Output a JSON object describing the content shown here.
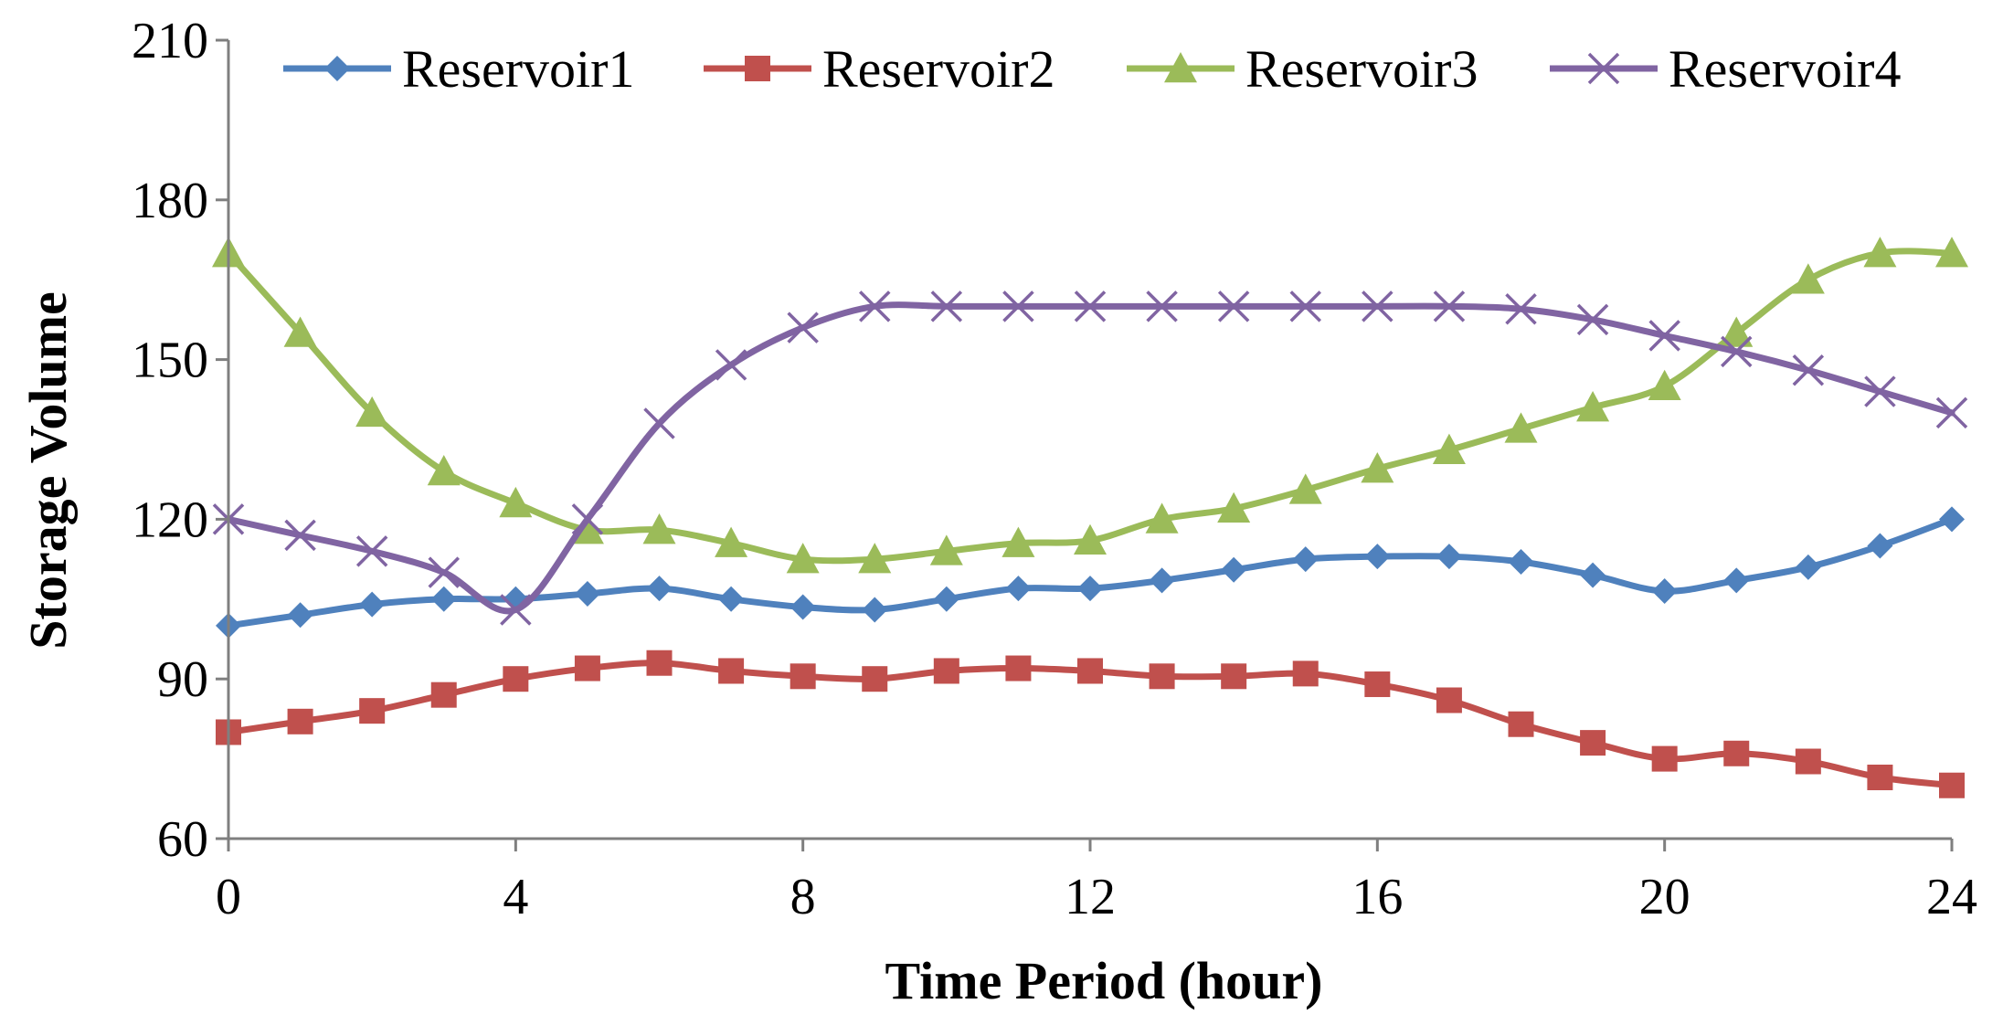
{
  "chart_data": {
    "type": "line",
    "title": "",
    "xlabel": "Time Period (hour)",
    "ylabel": "Storage Volume",
    "x": [
      0,
      1,
      2,
      3,
      4,
      5,
      6,
      7,
      8,
      9,
      10,
      11,
      12,
      13,
      14,
      15,
      16,
      17,
      18,
      19,
      20,
      21,
      22,
      23,
      24
    ],
    "xlim": [
      0,
      24
    ],
    "ylim": [
      60,
      210
    ],
    "xticks": [
      0,
      4,
      8,
      12,
      16,
      20,
      24
    ],
    "yticks": [
      60,
      90,
      120,
      150,
      180,
      210
    ],
    "xtick_labels": [
      "0",
      "4",
      "8",
      "12",
      "16",
      "20",
      "24"
    ],
    "ytick_labels": [
      "60",
      "90",
      "120",
      "150",
      "180",
      "210"
    ],
    "grid": false,
    "legend_position": "top",
    "smooth": true,
    "series": [
      {
        "name": "Reservoir1",
        "color": "#4F81BD",
        "marker": "diamond",
        "values": [
          100,
          102,
          104,
          105,
          105,
          106,
          107,
          105,
          103.5,
          103,
          105,
          107,
          107,
          108.5,
          110.5,
          112.5,
          113,
          113,
          112,
          109.5,
          106.5,
          108.5,
          111,
          115,
          120
        ]
      },
      {
        "name": "Reservoir2",
        "color": "#C0504D",
        "marker": "square",
        "values": [
          80,
          82,
          84,
          87,
          90,
          92,
          93,
          91.5,
          90.5,
          90,
          91.5,
          92,
          91.5,
          90.5,
          90.5,
          91,
          89,
          86,
          81.5,
          78,
          75,
          76,
          74.5,
          71.5,
          70
        ]
      },
      {
        "name": "Reservoir3",
        "color": "#9BBB59",
        "marker": "triangle",
        "values": [
          170,
          155,
          140,
          129,
          123,
          118,
          118,
          115.5,
          112.5,
          112.5,
          114,
          115.5,
          116,
          120,
          122,
          125.5,
          129.5,
          133,
          137,
          141,
          145,
          155,
          165,
          170,
          170
        ]
      },
      {
        "name": "Reservoir4",
        "color": "#8064A2",
        "marker": "x",
        "values": [
          120,
          117,
          114,
          110,
          103,
          120,
          138,
          149,
          156,
          160,
          160,
          160,
          160,
          160,
          160,
          160,
          160,
          160,
          159.5,
          157.5,
          154.5,
          151.5,
          148,
          144,
          140
        ]
      }
    ]
  }
}
